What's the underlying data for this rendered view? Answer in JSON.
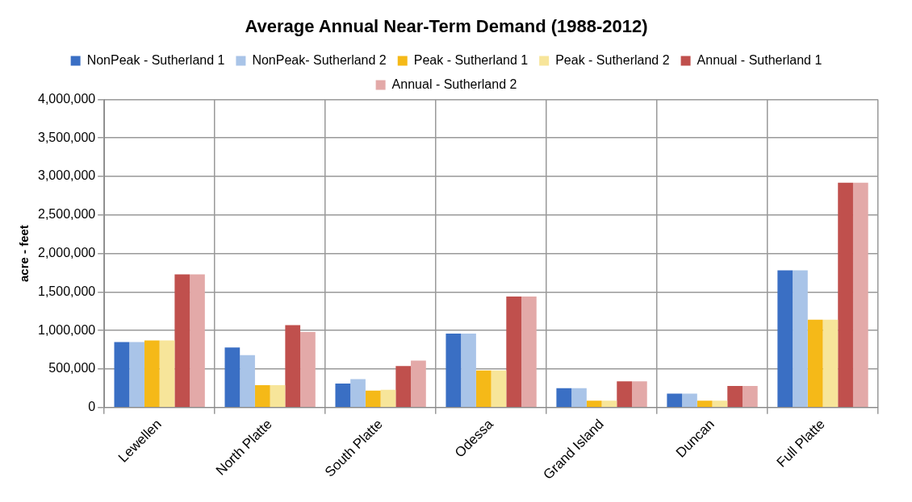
{
  "chart_data": {
    "type": "bar",
    "title": "Average Annual Near-Term Demand (1988-2012)",
    "ylabel": "acre - feet",
    "categories": [
      "Lewellen",
      "North Platte",
      "South Platte",
      "Odessa",
      "Grand Island",
      "Duncan",
      "Full Platte"
    ],
    "series": [
      {
        "name": "NonPeak - Sutherland 1",
        "color": "#3a6fc4",
        "values": [
          850000,
          780000,
          310000,
          960000,
          250000,
          180000,
          1780000
        ]
      },
      {
        "name": "NonPeak- Sutherland 2",
        "color": "#a9c4e8",
        "values": [
          850000,
          680000,
          370000,
          960000,
          250000,
          180000,
          1780000
        ]
      },
      {
        "name": "Peak - Sutherland 1",
        "color": "#f5b918",
        "values": [
          870000,
          290000,
          220000,
          480000,
          90000,
          90000,
          1140000
        ]
      },
      {
        "name": "Peak - Sutherland 2",
        "color": "#f7e59a",
        "values": [
          870000,
          290000,
          230000,
          480000,
          90000,
          90000,
          1140000
        ]
      },
      {
        "name": "Annual - Sutherland 1",
        "color": "#c0504d",
        "values": [
          1730000,
          1070000,
          540000,
          1440000,
          340000,
          280000,
          2920000
        ]
      },
      {
        "name": "Annual - Sutherland 2",
        "color": "#e3a9a8",
        "values": [
          1730000,
          980000,
          610000,
          1440000,
          340000,
          280000,
          2920000
        ]
      }
    ],
    "ylim": [
      0,
      4000000
    ],
    "yticks": [
      0,
      {
        "value": 500000,
        "label": "500,000"
      },
      {
        "value": 1000000,
        "label": "1,000,000"
      },
      {
        "value": 1500000,
        "label": "1,500,000"
      },
      {
        "value": 2000000,
        "label": "2,000,000"
      },
      {
        "value": 2500000,
        "label": "2,500,000"
      },
      {
        "value": 3000000,
        "label": "3,000,000"
      },
      {
        "value": 3500000,
        "label": "3,500,000"
      },
      {
        "value": 4000000,
        "label": "4,000,000"
      }
    ],
    "grid": true,
    "legend": "top"
  }
}
